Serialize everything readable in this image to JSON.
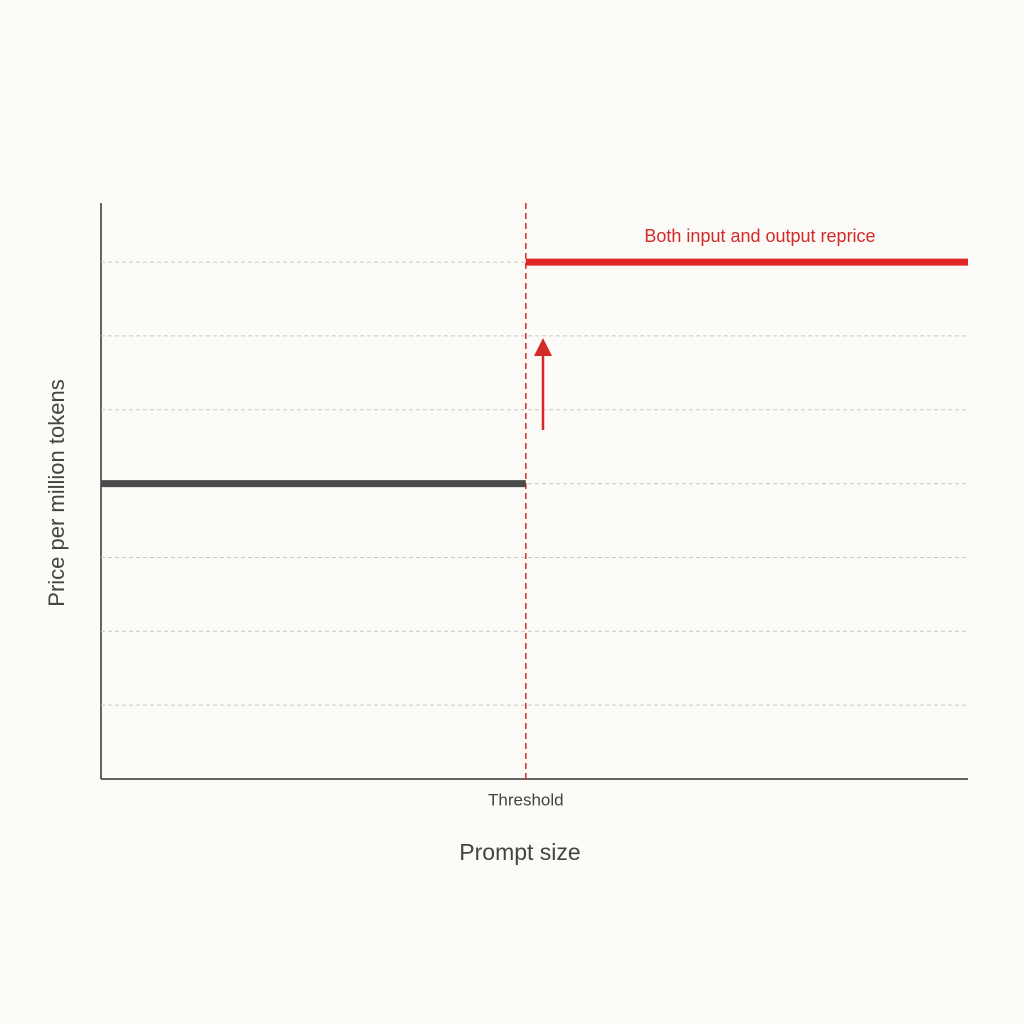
{
  "chart_data": {
    "type": "line",
    "xlabel": "Prompt size",
    "ylabel": "Price per million tokens",
    "annotation": "Both input and output reprice",
    "xlim": [
      0,
      100
    ],
    "xticks": [
      {
        "value": 49,
        "label": "Threshold"
      }
    ],
    "ylim": [
      0,
      7.8
    ],
    "yticks": [
      1,
      2,
      3,
      4,
      5,
      6,
      7
    ],
    "grid": true,
    "series": [
      {
        "color": "#4a4a4a",
        "x": [
          0,
          49
        ],
        "values": [
          4,
          4
        ]
      },
      {
        "color": "#e02424",
        "x": [
          49,
          100
        ],
        "values": [
          7,
          7
        ]
      }
    ]
  }
}
